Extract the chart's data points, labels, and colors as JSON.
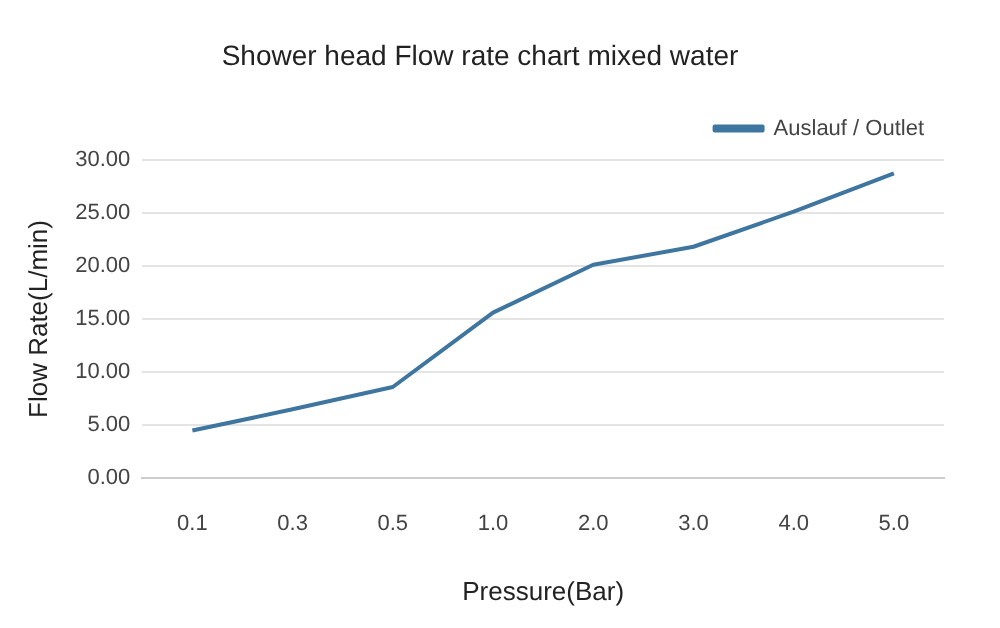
{
  "chart_data": {
    "type": "line",
    "title": "Shower head Flow rate chart mixed water",
    "xlabel": "Pressure(Bar)",
    "ylabel": "Flow Rate(L/min)",
    "categories": [
      "0.1",
      "0.3",
      "0.5",
      "1.0",
      "2.0",
      "3.0",
      "4.0",
      "5.0"
    ],
    "series": [
      {
        "name": "Auslauf / Outlet",
        "color": "#3f76a0",
        "values": [
          4.5,
          6.5,
          8.6,
          15.6,
          20.1,
          21.8,
          25.1,
          28.7
        ]
      }
    ],
    "ylim": [
      0,
      30
    ],
    "yticks": [
      {
        "value": 0,
        "label": "0.00"
      },
      {
        "value": 5,
        "label": "5.00"
      },
      {
        "value": 10,
        "label": "10.00"
      },
      {
        "value": 15,
        "label": "15.00"
      },
      {
        "value": 20,
        "label": "20.00"
      },
      {
        "value": 25,
        "label": "25.00"
      },
      {
        "value": 30,
        "label": "30.00"
      }
    ],
    "grid": "y",
    "legend": "top right",
    "marker": "none"
  }
}
